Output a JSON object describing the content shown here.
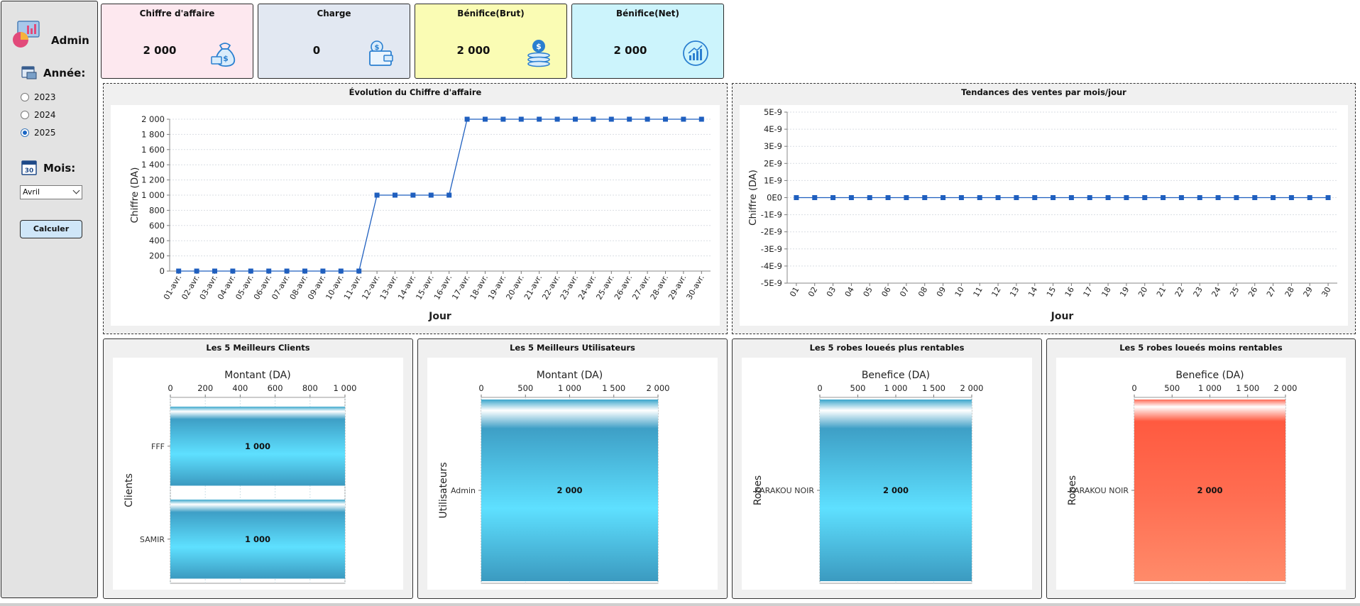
{
  "sidebar": {
    "admin_label": "Admin",
    "year_label": "Année:",
    "years": [
      {
        "label": "2023",
        "selected": false
      },
      {
        "label": "2024",
        "selected": false
      },
      {
        "label": "2025",
        "selected": true
      }
    ],
    "month_label": "Mois:",
    "month_value": "Avril",
    "calc_button": "Calculer"
  },
  "cards": [
    {
      "title": "Chiffre d'affaire",
      "value": "2 000",
      "bg": "#fde8ef",
      "icon": "money-bag-icon"
    },
    {
      "title": "Charge",
      "value": "0",
      "bg": "#e2e8f2",
      "icon": "wallet-icon"
    },
    {
      "title": "Bénifice(Brut)",
      "value": "2 000",
      "bg": "#fafcb4",
      "icon": "coins-icon"
    },
    {
      "title": "Bénifice(Net)",
      "value": "2 000",
      "bg": "#ccf4fc",
      "icon": "growth-chart-icon"
    }
  ],
  "chart_data": [
    {
      "type": "line",
      "title": "Évolution du Chiffre d'affaire",
      "xlabel": "Jour",
      "ylabel": "Chiffre (DA)",
      "ylim": [
        0,
        2000
      ],
      "yticks": [
        "0",
        "200",
        "400",
        "600",
        "800",
        "1 000",
        "1 200",
        "1 400",
        "1 600",
        "1 800",
        "2 000"
      ],
      "categories": [
        "01-avr.",
        "02-avr.",
        "03-avr.",
        "04-avr.",
        "05-avr.",
        "06-avr.",
        "07-avr.",
        "08-avr.",
        "09-avr.",
        "10-avr.",
        "11-avr.",
        "12-avr.",
        "13-avr.",
        "14-avr.",
        "15-avr.",
        "16-avr.",
        "17-avr.",
        "18-avr.",
        "19-avr.",
        "20-avr.",
        "21-avr.",
        "22-avr.",
        "23-avr.",
        "24-avr.",
        "25-avr.",
        "26-avr.",
        "27-avr.",
        "28-avr.",
        "29-avr.",
        "30-avr."
      ],
      "values": [
        0,
        0,
        0,
        0,
        0,
        0,
        0,
        0,
        0,
        0,
        0,
        1000,
        1000,
        1000,
        1000,
        1000,
        2000,
        2000,
        2000,
        2000,
        2000,
        2000,
        2000,
        2000,
        2000,
        2000,
        2000,
        2000,
        2000,
        2000
      ],
      "color": "#1f5fbf",
      "grid": true
    },
    {
      "type": "line",
      "title": "Tendances des ventes par mois/jour",
      "xlabel": "Jour",
      "ylabel": "Chiffre (DA)",
      "ylim": [
        -5e-09,
        5e-09
      ],
      "yticks": [
        "-5E-9",
        "-4E-9",
        "-3E-9",
        "-2E-9",
        "-1E-9",
        "0E0",
        "1E-9",
        "2E-9",
        "3E-9",
        "4E-9",
        "5E-9"
      ],
      "categories": [
        "01",
        "02",
        "03",
        "04",
        "05",
        "06",
        "07",
        "08",
        "09",
        "10",
        "11",
        "12",
        "13",
        "14",
        "15",
        "16",
        "17",
        "18",
        "19",
        "20",
        "21",
        "22",
        "23",
        "24",
        "25",
        "26",
        "27",
        "28",
        "29",
        "30"
      ],
      "values": [
        0,
        0,
        0,
        0,
        0,
        0,
        0,
        0,
        0,
        0,
        0,
        0,
        0,
        0,
        0,
        0,
        0,
        0,
        0,
        0,
        0,
        0,
        0,
        0,
        0,
        0,
        0,
        0,
        0,
        0
      ],
      "color": "#1f5fbf",
      "grid": true
    },
    {
      "type": "bar",
      "orientation": "horizontal",
      "title": "Les 5 Meilleurs Clients",
      "xlabel": "Montant (DA)",
      "ylabel": "Clients",
      "xlim": [
        0,
        1000
      ],
      "xticks": [
        "0",
        "200",
        "400",
        "600",
        "800",
        "1 000"
      ],
      "categories": [
        "FFF",
        "SAMIR"
      ],
      "values": [
        1000,
        1000
      ],
      "value_labels": [
        "1 000",
        "1 000"
      ],
      "color": "blue"
    },
    {
      "type": "bar",
      "orientation": "horizontal",
      "title": "Les 5 Meilleurs Utilisateurs",
      "xlabel": "Montant (DA)",
      "ylabel": "Utilisateurs",
      "xlim": [
        0,
        2000
      ],
      "xticks": [
        "0",
        "500",
        "1 000",
        "1 500",
        "2 000"
      ],
      "categories": [
        "Admin"
      ],
      "values": [
        2000
      ],
      "value_labels": [
        "2 000"
      ],
      "color": "blue"
    },
    {
      "type": "bar",
      "orientation": "horizontal",
      "title": "Les 5 robes loueés plus rentables",
      "xlabel": "Benefice (DA)",
      "ylabel": "Robes",
      "xlim": [
        0,
        2000
      ],
      "xticks": [
        "0",
        "500",
        "1 000",
        "1 500",
        "2 000"
      ],
      "categories": [
        "KARAKOU NOIR"
      ],
      "values": [
        2000
      ],
      "value_labels": [
        "2 000"
      ],
      "color": "blue"
    },
    {
      "type": "bar",
      "orientation": "horizontal",
      "title": "Les 5 robes loueés moins rentables",
      "xlabel": "Benefice (DA)",
      "ylabel": "Robes",
      "xlim": [
        0,
        2000
      ],
      "xticks": [
        "0",
        "500",
        "1 000",
        "1 500",
        "2 000"
      ],
      "categories": [
        "KARAKOU NOIR"
      ],
      "values": [
        2000
      ],
      "value_labels": [
        "2 000"
      ],
      "color": "red"
    }
  ]
}
